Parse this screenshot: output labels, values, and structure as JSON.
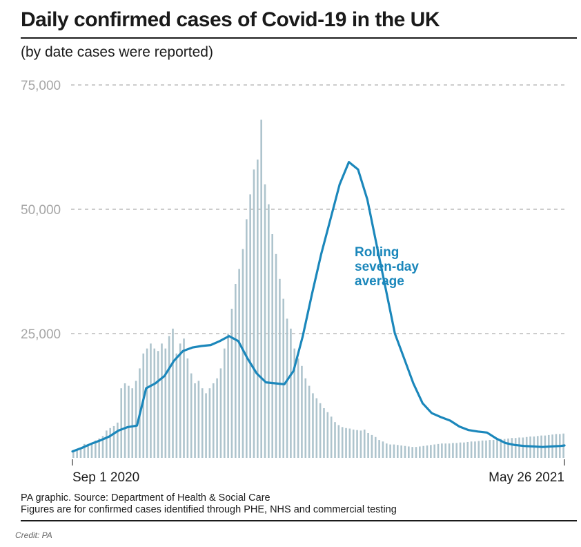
{
  "title": "Daily confirmed cases of Covid-19 in the UK",
  "subtitle": "(by date cases were reported)",
  "footer": {
    "source": "PA graphic. Source: Department of Health & Social Care",
    "note": "Figures are for confirmed cases identified through PHE, NHS and commercial testing"
  },
  "credit": "Credit: PA",
  "colors": {
    "bars": "#aec4cd",
    "line": "#1b87bb",
    "grid": "#9a9a9a",
    "tick_text": "#a6a6a6",
    "annotation": "#1b87bb"
  },
  "chart_data": {
    "type": "bar",
    "title": "Daily confirmed cases of Covid-19 in the UK",
    "xlabel": "",
    "ylabel": "",
    "ylim": [
      0,
      75000
    ],
    "yticks": [
      25000,
      50000,
      75000
    ],
    "ytick_labels": [
      "25,000",
      "50,000",
      "75,000"
    ],
    "grid": true,
    "x_range_days": [
      0,
      267
    ],
    "x_start_label": "Sep 1 2020",
    "x_end_label": "May 26 2021",
    "annotation": [
      "Rolling",
      "seven-day",
      "average"
    ],
    "series": [
      {
        "name": "Daily confirmed cases",
        "type": "bar",
        "interval_days": 2,
        "values": [
          1300,
          1700,
          2000,
          2800,
          2600,
          3000,
          3500,
          3900,
          4400,
          5500,
          6000,
          6400,
          7100,
          14000,
          15000,
          14500,
          14000,
          15500,
          18000,
          21000,
          22000,
          23000,
          22000,
          21500,
          23000,
          22000,
          24500,
          26000,
          21000,
          23000,
          24000,
          20000,
          17000,
          15000,
          15500,
          14000,
          13000,
          14000,
          15000,
          16000,
          18000,
          22000,
          25000,
          30000,
          35000,
          38000,
          42000,
          48000,
          53000,
          58000,
          60000,
          68000,
          55000,
          51000,
          45000,
          41000,
          36000,
          32000,
          28000,
          26000,
          22000,
          20000,
          18500,
          16000,
          14500,
          13000,
          12000,
          11000,
          10000,
          9200,
          8300,
          7200,
          6600,
          6200,
          6000,
          5900,
          5700,
          5600,
          5500,
          5700,
          5000,
          4600,
          4200,
          3600,
          3300,
          2900,
          2700,
          2700,
          2600,
          2500,
          2400,
          2300,
          2200,
          2200,
          2300,
          2400,
          2500,
          2600,
          2700,
          2800,
          2900,
          2900,
          2900,
          3000,
          3000,
          3100,
          3100,
          3200,
          3300,
          3300,
          3400,
          3500,
          3500,
          3600,
          3600,
          3700,
          3800,
          3800,
          3900,
          4000,
          4000,
          4100,
          4100,
          4200,
          4300,
          4300,
          4400,
          4500,
          4500,
          4600,
          4700,
          4800,
          4800,
          4900
        ]
      },
      {
        "name": "Rolling seven-day average",
        "type": "line",
        "x": [
          0,
          5,
          10,
          15,
          20,
          25,
          30,
          35,
          40,
          45,
          50,
          55,
          60,
          65,
          70,
          75,
          80,
          85,
          90,
          95,
          100,
          105,
          110,
          115,
          120,
          125,
          130,
          135,
          140,
          145,
          150,
          155,
          160,
          165,
          170,
          175,
          180,
          185,
          190,
          195,
          200,
          205,
          210,
          215,
          220,
          225,
          230,
          235,
          240,
          245,
          250,
          255,
          260,
          265,
          267
        ],
        "values": [
          1300,
          2000,
          2800,
          3500,
          4300,
          5500,
          6200,
          6500,
          14000,
          15000,
          16500,
          19500,
          21500,
          22200,
          22500,
          22700,
          23500,
          24500,
          23500,
          20000,
          17000,
          15200,
          15000,
          14800,
          17500,
          24500,
          33000,
          41000,
          48000,
          55000,
          59500,
          58000,
          52000,
          43000,
          34000,
          25000,
          20000,
          15000,
          11000,
          9000,
          8200,
          7500,
          6300,
          5600,
          5300,
          5100,
          3900,
          3000,
          2600,
          2400,
          2300,
          2200,
          2300,
          2400,
          2500
        ]
      }
    ]
  }
}
